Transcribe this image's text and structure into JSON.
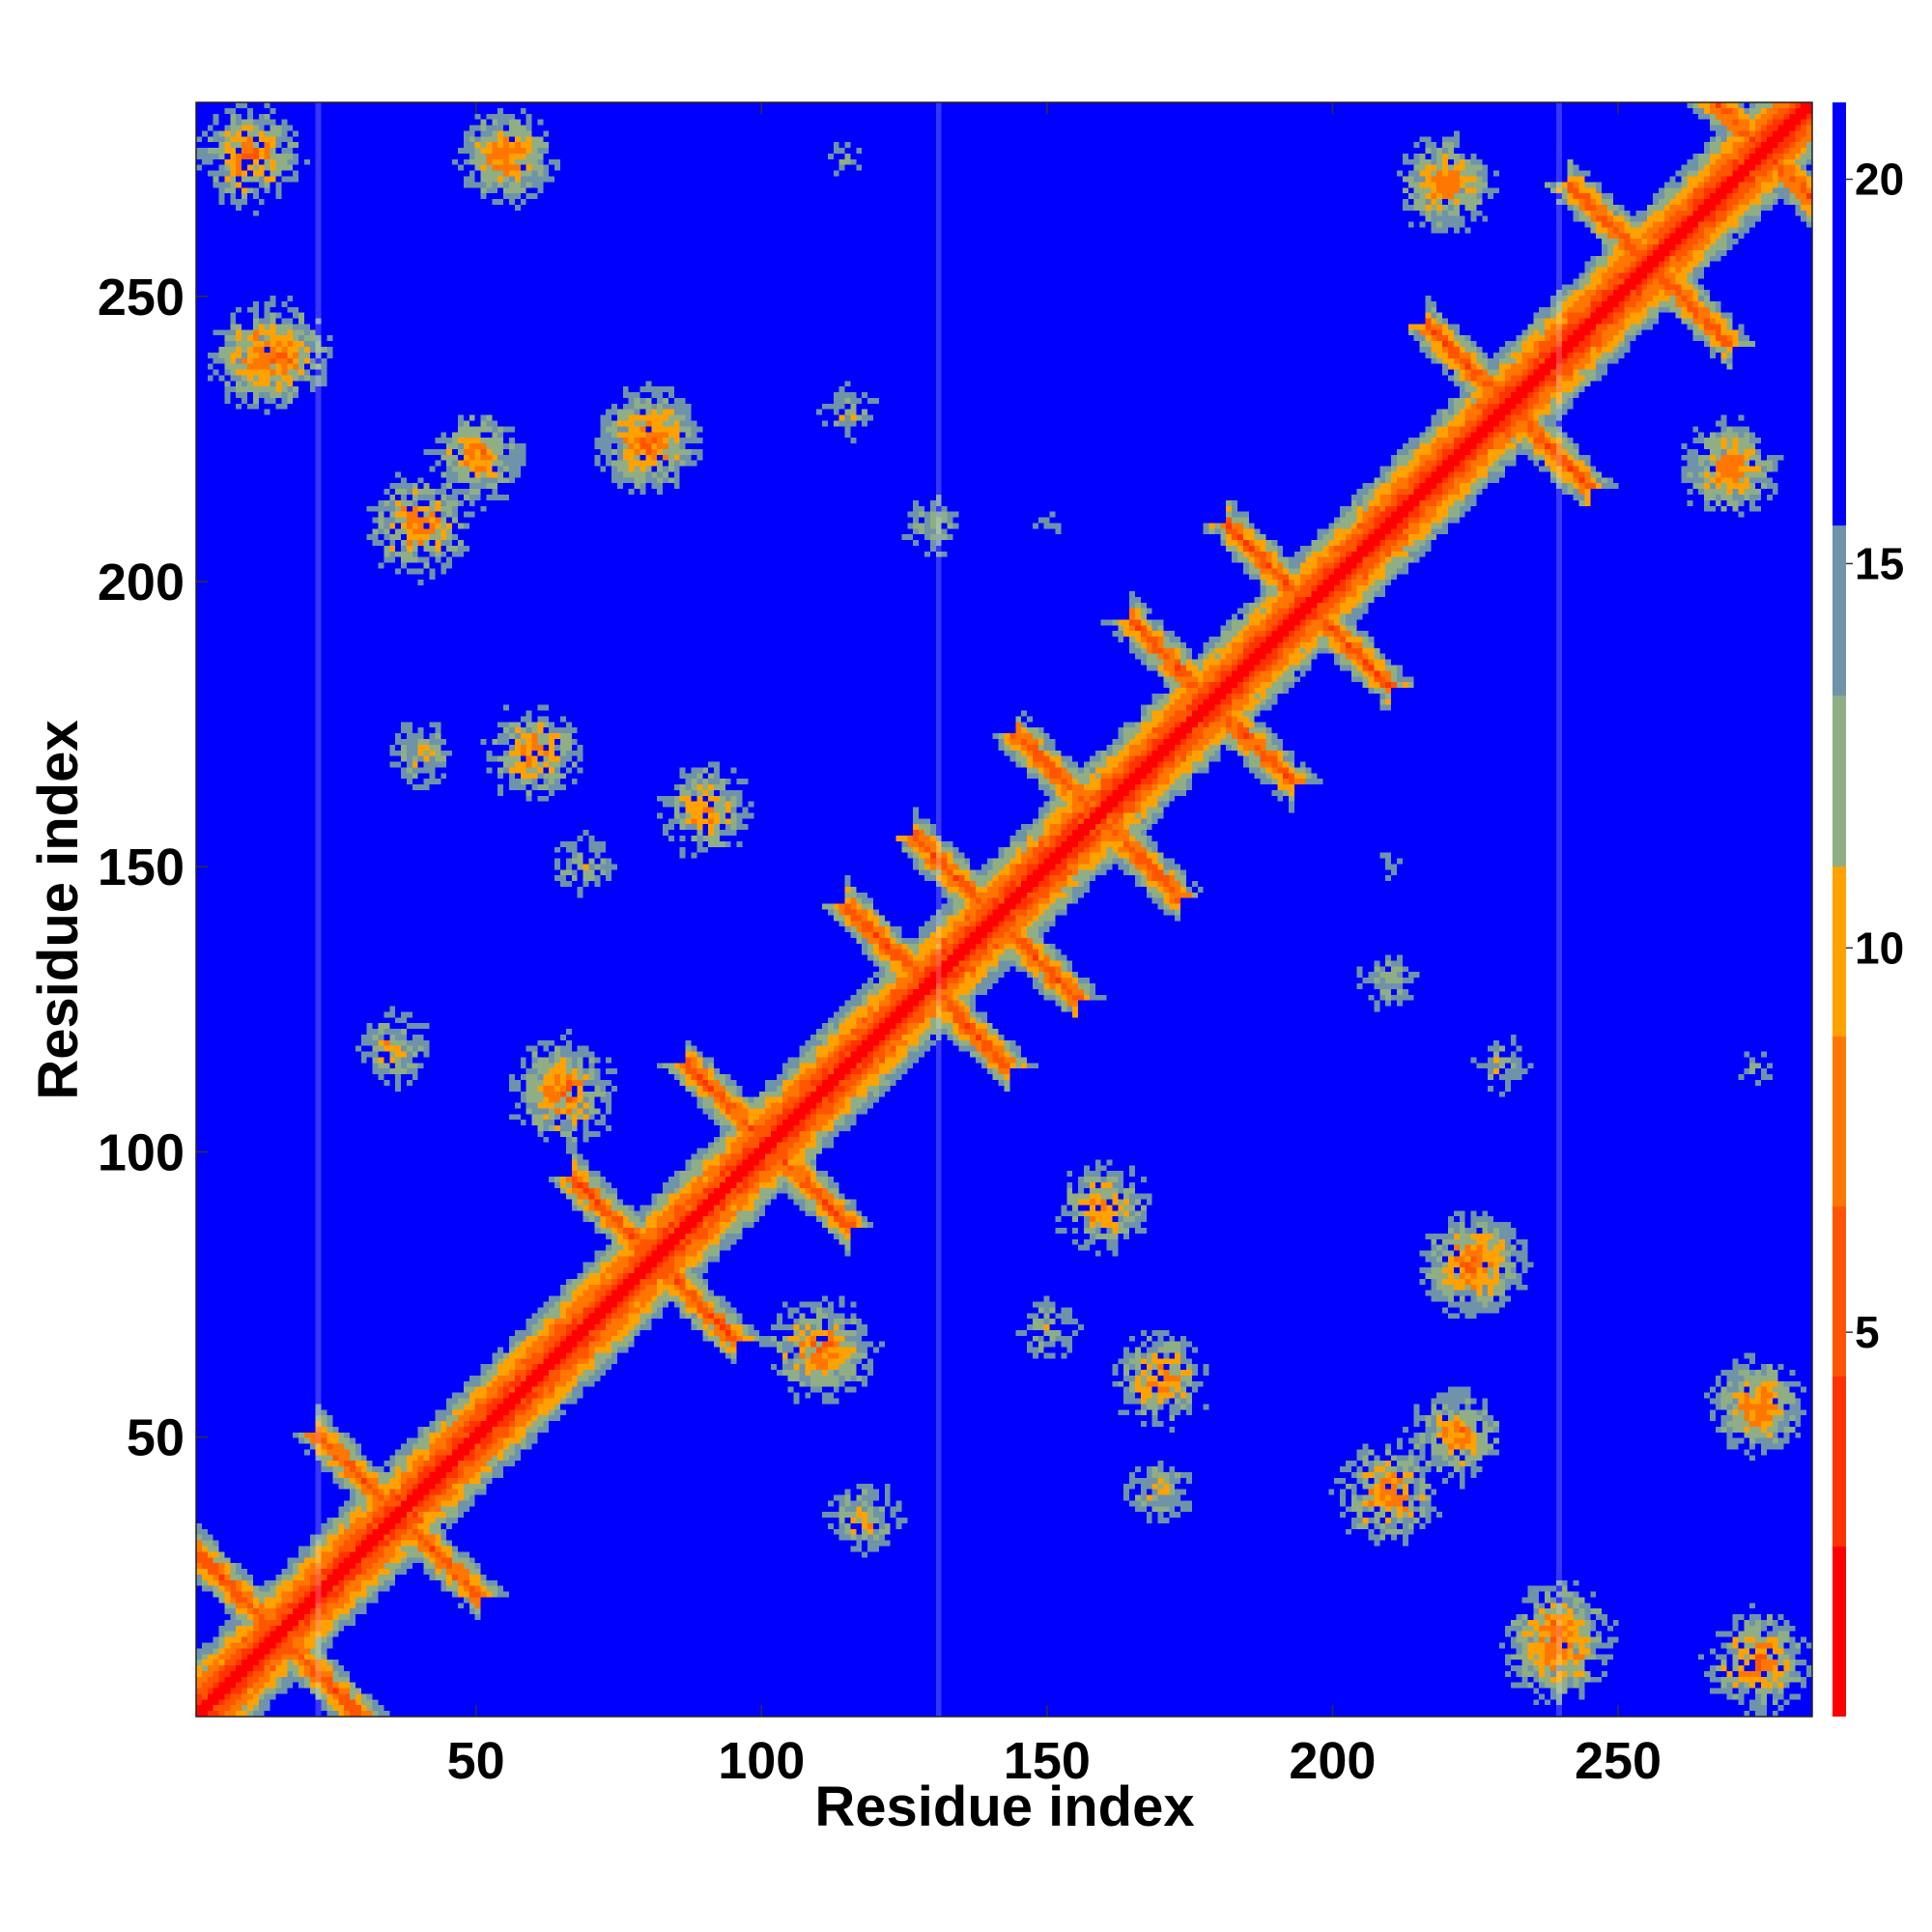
{
  "chart_data": {
    "type": "heatmap",
    "title": "",
    "xlabel": "Residue index",
    "ylabel": "Residue index",
    "xlim": [
      1,
      284
    ],
    "ylim": [
      1,
      284
    ],
    "x_ticks": [
      50,
      100,
      150,
      200,
      250
    ],
    "y_ticks": [
      50,
      100,
      150,
      200,
      250
    ],
    "colorbar": {
      "range": [
        0,
        21
      ],
      "ticks": [
        5,
        10,
        15,
        20
      ],
      "colors_low_to_high": [
        "#ff0000",
        "#ff3300",
        "#ff5500",
        "#ff7700",
        "#ffa200",
        "#8fae86",
        "#6f93a8",
        "#0000ff"
      ]
    },
    "chain_boundaries": [
      22,
      131,
      240
    ],
    "diagonal_value": 0,
    "background_value": 21,
    "helix_crossings": [
      [
        14,
        14
      ],
      [
        35,
        35
      ],
      [
        80,
        80
      ],
      [
        100,
        100
      ],
      [
        128,
        128
      ],
      [
        140,
        140
      ],
      [
        158,
        158
      ],
      [
        178,
        178
      ],
      [
        195,
        195
      ],
      [
        230,
        230
      ],
      [
        255,
        255
      ],
      [
        275,
        275
      ]
    ],
    "contact_clusters": [
      {
        "residue_x": 12,
        "residue_y": 240,
        "min_distance": 4
      },
      {
        "residue_x": 40,
        "residue_y": 210,
        "min_distance": 4
      },
      {
        "residue_x": 80,
        "residue_y": 225,
        "min_distance": 4
      },
      {
        "residue_x": 55,
        "residue_y": 275,
        "min_distance": 5
      },
      {
        "residue_x": 115,
        "residue_y": 230,
        "min_distance": 9
      },
      {
        "residue_x": 40,
        "residue_y": 170,
        "min_distance": 8
      },
      {
        "residue_x": 35,
        "residue_y": 118,
        "min_distance": 7
      },
      {
        "residue_x": 65,
        "residue_y": 112,
        "min_distance": 5
      },
      {
        "residue_x": 68,
        "residue_y": 150,
        "min_distance": 8
      },
      {
        "residue_x": 110,
        "residue_y": 65,
        "min_distance": 4
      },
      {
        "residue_x": 118,
        "residue_y": 38,
        "min_distance": 10
      },
      {
        "residue_x": 160,
        "residue_y": 90,
        "min_distance": 5
      },
      {
        "residue_x": 170,
        "residue_y": 60,
        "min_distance": 5
      },
      {
        "residue_x": 222,
        "residue_y": 50,
        "min_distance": 5
      },
      {
        "residue_x": 225,
        "residue_y": 80,
        "min_distance": 4
      },
      {
        "residue_x": 240,
        "residue_y": 15,
        "min_distance": 4
      },
      {
        "residue_x": 275,
        "residue_y": 55,
        "min_distance": 5
      },
      {
        "residue_x": 270,
        "residue_y": 220,
        "min_distance": 5
      },
      {
        "residue_x": 220,
        "residue_y": 270,
        "min_distance": 5
      },
      {
        "residue_x": 210,
        "residue_y": 130,
        "min_distance": 9
      },
      {
        "residue_x": 275,
        "residue_y": 115,
        "min_distance": 11
      },
      {
        "residue_x": 130,
        "residue_y": 210,
        "min_distance": 11
      },
      {
        "residue_x": 150,
        "residue_y": 210,
        "min_distance": 11
      },
      {
        "residue_x": 10,
        "residue_y": 275,
        "min_distance": 4
      }
    ]
  }
}
